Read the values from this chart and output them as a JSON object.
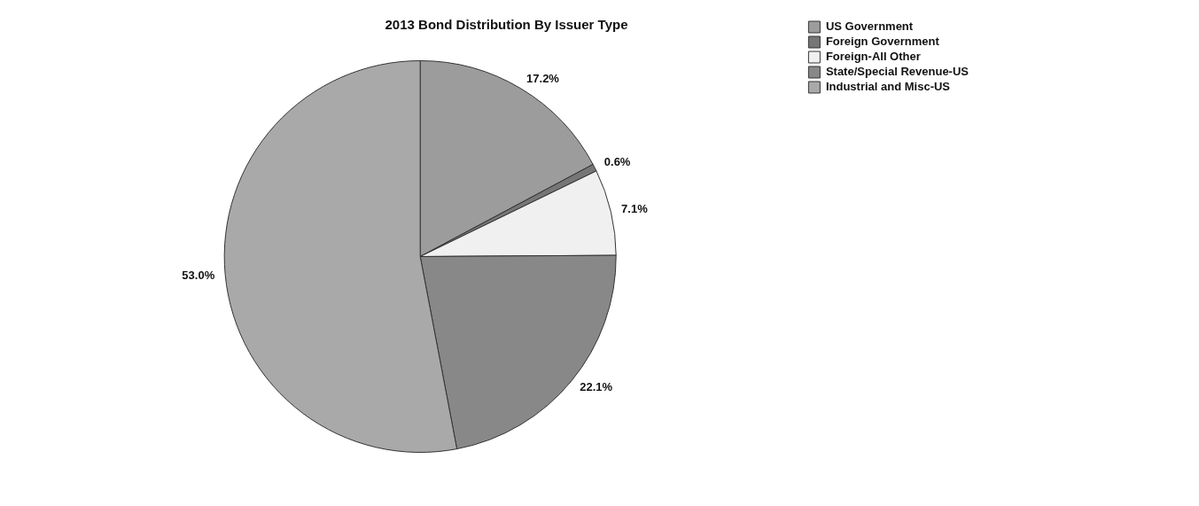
{
  "chart_data": {
    "type": "pie",
    "title": "2013 Bond Distribution By Issuer Type",
    "categories": [
      "US Government",
      "Foreign Government",
      "Foreign-All Other",
      "State/Special Revenue-US",
      "Industrial and Misc-US"
    ],
    "values": [
      17.2,
      0.6,
      7.1,
      22.1,
      53.0
    ],
    "value_labels": [
      "17.2%",
      "0.6%",
      "7.1%",
      "22.1%",
      "53.0%"
    ],
    "colors": [
      "#9c9c9c",
      "#767676",
      "#f0f0f0",
      "#888888",
      "#a9a9a9"
    ],
    "legend": "right"
  }
}
